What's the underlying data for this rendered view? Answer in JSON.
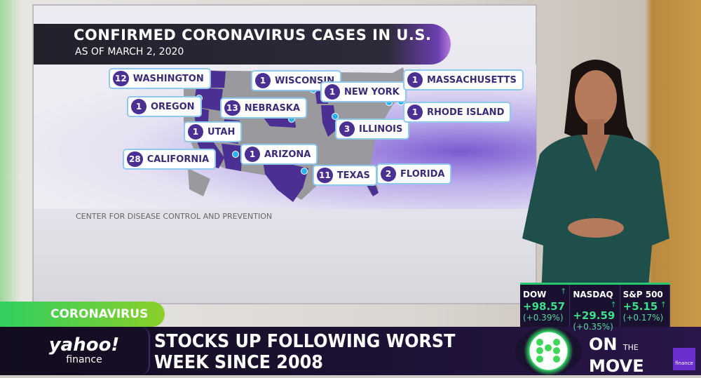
{
  "map_graphic": {
    "title": "CONFIRMED CORONAVIRUS CASES IN U.S.",
    "subtitle": "AS OF MARCH 2, 2020",
    "source": "CENTER FOR DISEASE CONTROL AND PREVENTION",
    "states": [
      {
        "name": "WASHINGTON",
        "cases": "12"
      },
      {
        "name": "OREGON",
        "cases": "1"
      },
      {
        "name": "UTAH",
        "cases": "1"
      },
      {
        "name": "CALIFORNIA",
        "cases": "28"
      },
      {
        "name": "NEBRASKA",
        "cases": "13"
      },
      {
        "name": "ARIZONA",
        "cases": "1"
      },
      {
        "name": "WISCONSIN",
        "cases": "1"
      },
      {
        "name": "NEW YORK",
        "cases": "1"
      },
      {
        "name": "ILLINOIS",
        "cases": "3"
      },
      {
        "name": "TEXAS",
        "cases": "11"
      },
      {
        "name": "FLORIDA",
        "cases": "2"
      },
      {
        "name": "MASSACHUSETTS",
        "cases": "1"
      },
      {
        "name": "RHODE ISLAND",
        "cases": "1"
      }
    ],
    "colors": {
      "affected": "#4b2f92",
      "unaffected": "#9a9a9e",
      "marker": "#27b3f0"
    }
  },
  "lower_third": {
    "tag": "CORONAVIRUS",
    "logo": {
      "brand": "yahoo!",
      "sub": "finance"
    },
    "headline_line1": "STOCKS UP FOLLOWING WORST",
    "headline_line2": "WEEK SINCE 2008",
    "show": {
      "on": "ON",
      "the": "THE",
      "move": "MOVE"
    },
    "badge": "finance"
  },
  "tickers": [
    {
      "name": "DOW",
      "change": "+98.57",
      "pct": "(+0.39%)",
      "direction": "up"
    },
    {
      "name": "NASDAQ",
      "change": "+29.59",
      "pct": "(+0.35%)",
      "direction": "up"
    },
    {
      "name": "S&P 500",
      "change": "+5.15",
      "pct": "(+0.17%)",
      "direction": "up"
    }
  ]
}
